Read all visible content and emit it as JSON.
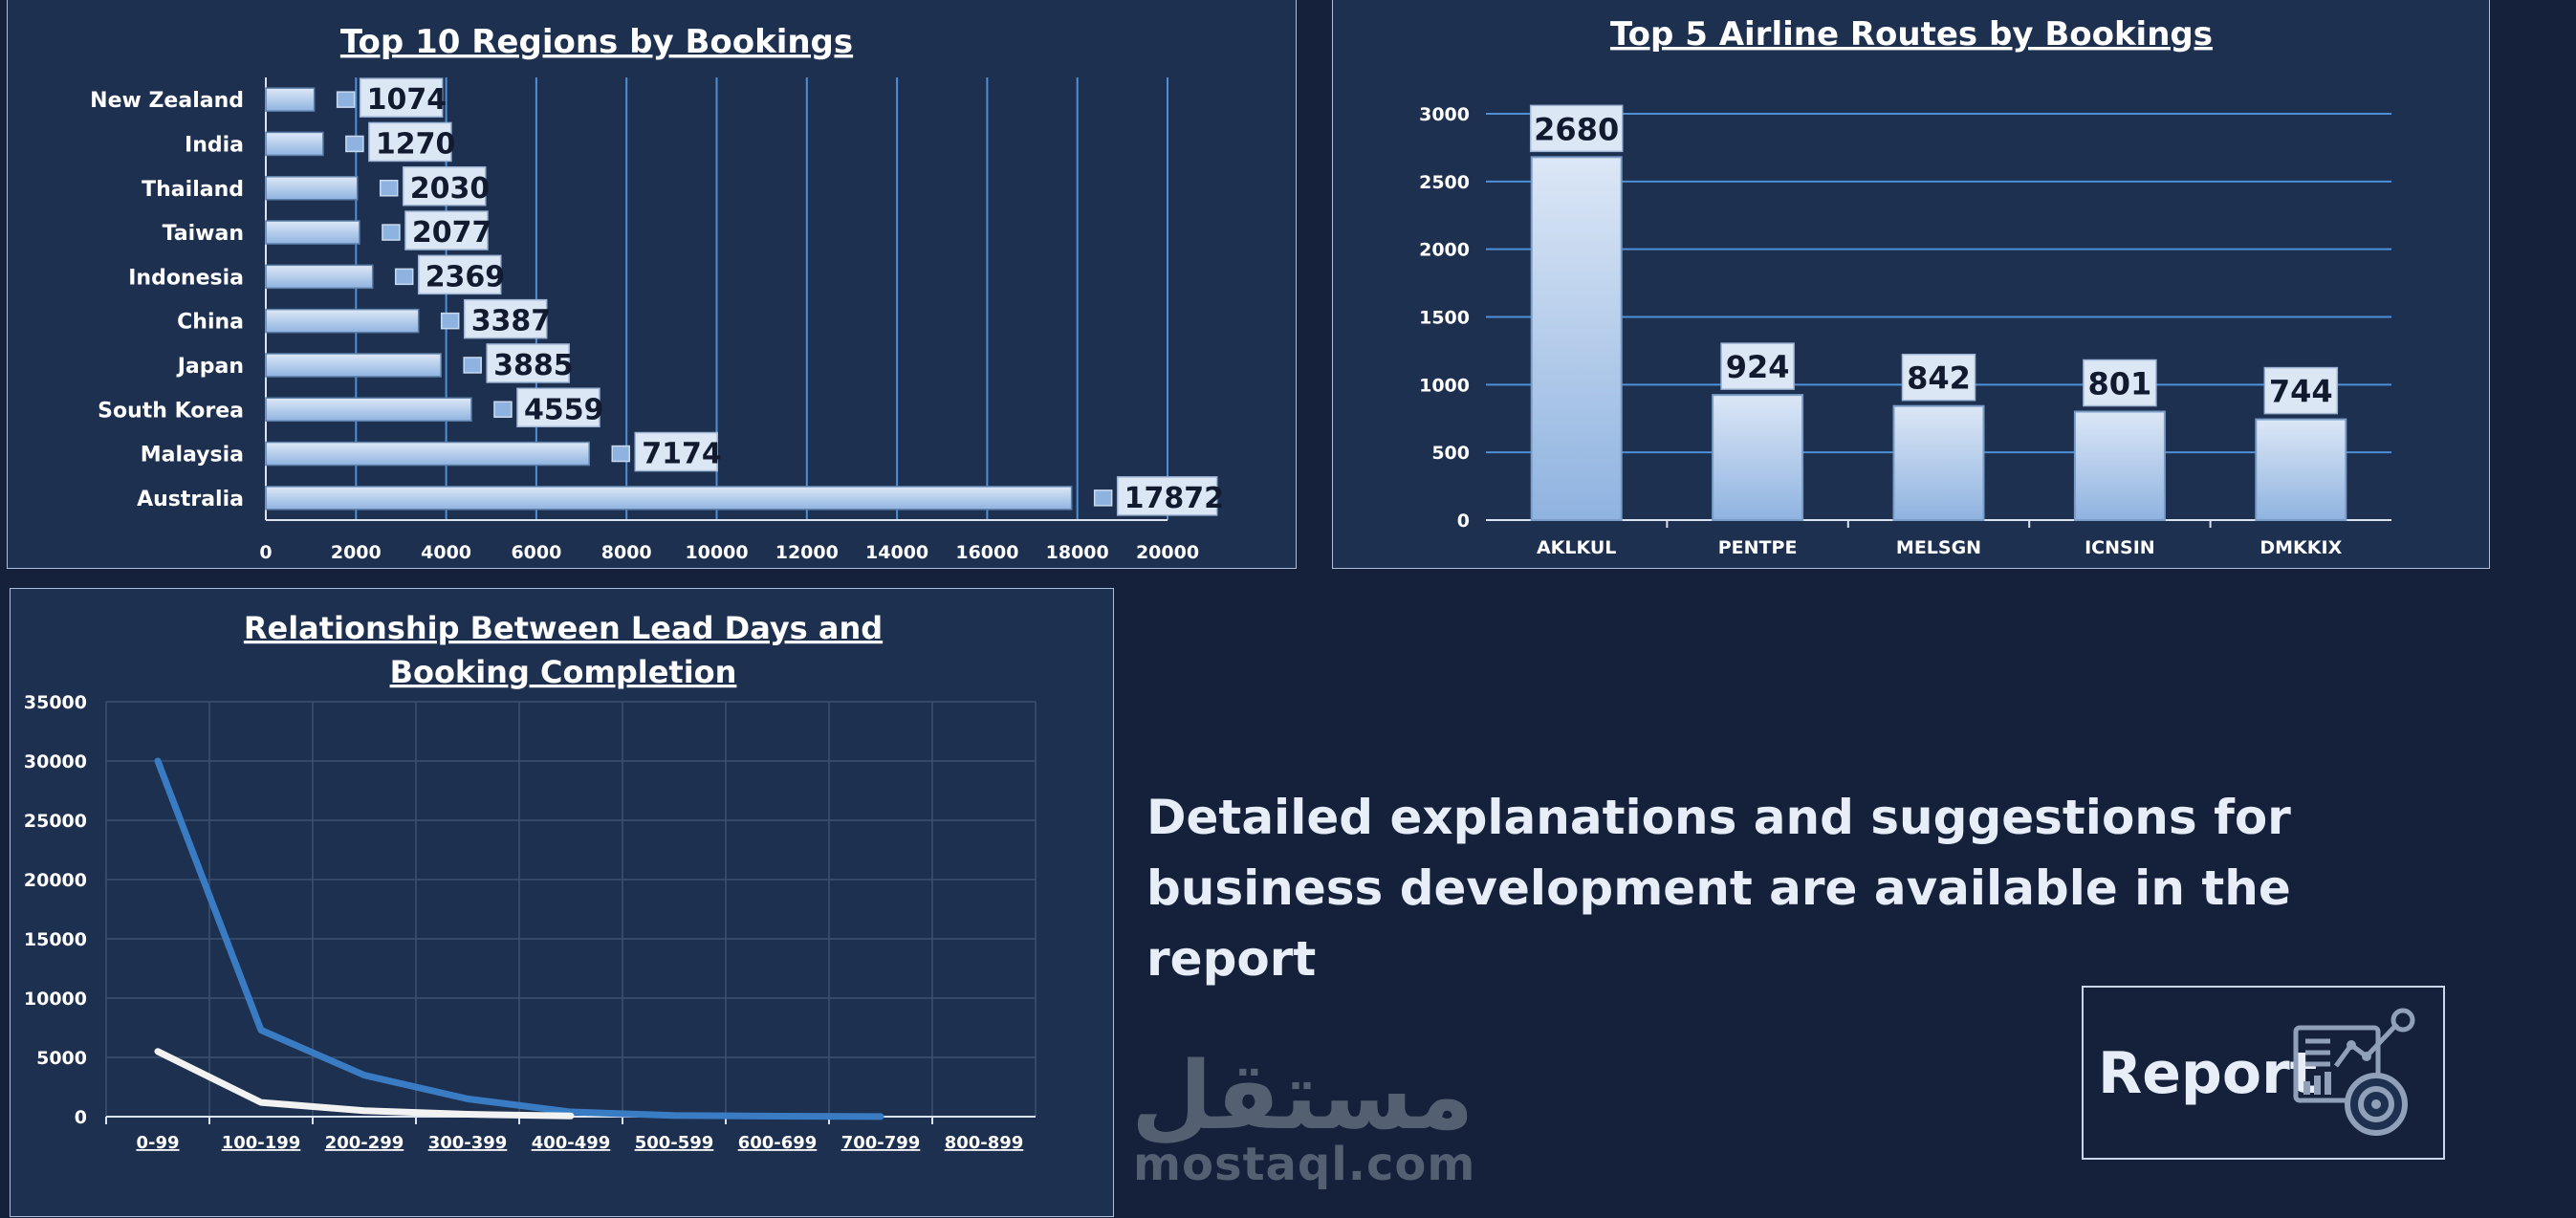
{
  "chart_data": [
    {
      "type": "bar",
      "orientation": "horizontal",
      "title": "Top 10 Regions by Bookings",
      "categories": [
        "New Zealand",
        "India",
        "Thailand",
        "Taiwan",
        "Indonesia",
        "China",
        "Japan",
        "South Korea",
        "Malaysia",
        "Australia"
      ],
      "values": [
        1074,
        1270,
        2030,
        2077,
        2369,
        3387,
        3885,
        4559,
        7174,
        17872
      ],
      "data_labels": [
        "1074",
        "1270",
        "2030",
        "2077",
        "2369",
        "3387",
        "3885",
        "4559",
        "7174",
        "17872"
      ],
      "xlim": [
        0,
        20000
      ],
      "x_ticks": [
        "0",
        "2000",
        "4000",
        "6000",
        "8000",
        "10000",
        "12000",
        "14000",
        "16000",
        "18000",
        "20000"
      ],
      "grid": "vertical"
    },
    {
      "type": "bar",
      "title": "Top 5 Airline Routes by Bookings",
      "categories": [
        "AKLKUL",
        "PENTPE",
        "MELSGN",
        "ICNSIN",
        "DMKKIX"
      ],
      "values": [
        2680,
        924,
        842,
        801,
        744
      ],
      "data_labels": [
        "2680",
        "924",
        "842",
        "801",
        "744"
      ],
      "ylim": [
        0,
        3000
      ],
      "y_ticks": [
        "0",
        "500",
        "1000",
        "1500",
        "2000",
        "2500",
        "3000"
      ],
      "grid": "horizontal"
    },
    {
      "type": "line",
      "title": "Relationship Between Lead Days and Booking Completion",
      "categories": [
        "0-99",
        "100-199",
        "200-299",
        "300-399",
        "400-499",
        "500-599",
        "600-699",
        "700-799",
        "800-899"
      ],
      "series": [
        {
          "values": [
            30000,
            7300,
            3500,
            1500,
            400,
            100,
            40,
            10,
            null
          ],
          "color": "#3a7cc4"
        },
        {
          "values": [
            5500,
            1200,
            500,
            200,
            60,
            null,
            null,
            null,
            null
          ],
          "color": "#f2f2f2"
        }
      ],
      "ylim": [
        0,
        35000
      ],
      "y_ticks": [
        "0",
        "5000",
        "10000",
        "15000",
        "20000",
        "25000",
        "30000",
        "35000"
      ],
      "grid": "both"
    }
  ],
  "insight_text": "Detailed explanations and suggestions for business development are available in the report",
  "report_button": {
    "label": "Report",
    "icon": "report-analytics-icon"
  },
  "watermark": {
    "arabic": "مستقل",
    "url": "mostaql.com"
  },
  "colors": {
    "background": "#15213a",
    "panel": "#1e3050",
    "bar_light": "#c9daf0",
    "bar_mid": "#8fb3e0",
    "gridline": "#4f8fd6",
    "line_blue": "#3a7cc4",
    "line_white": "#f2f2f2"
  }
}
